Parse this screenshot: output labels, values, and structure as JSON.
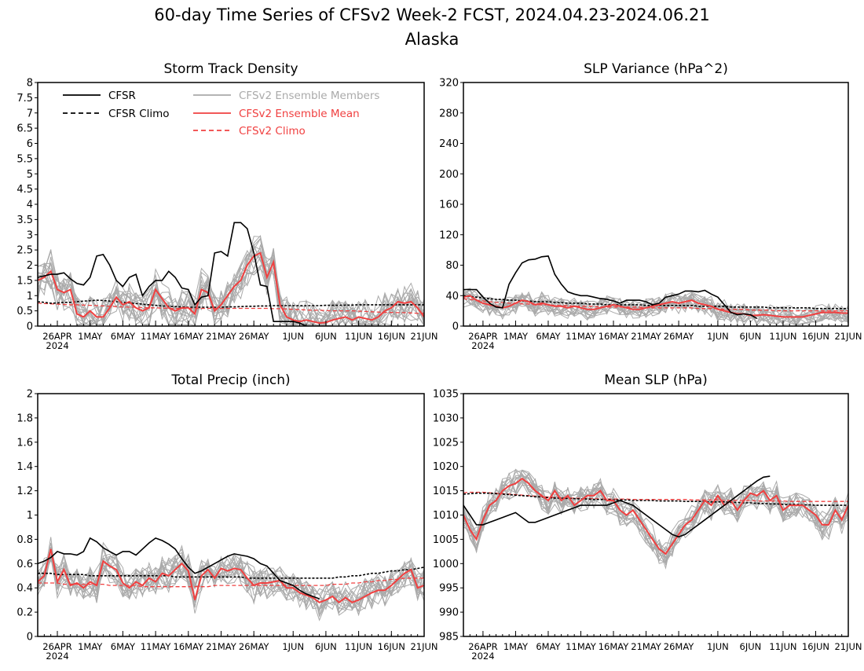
{
  "page": {
    "title_line1": "60-day Time Series of CFSv2 Week-2 FCST, 2024.04.23-2024.06.21",
    "title_line2": "Alaska"
  },
  "colors": {
    "cfsr": "#000000",
    "cfsr_climo": "#000000",
    "members": "#aaaaaa",
    "ens_mean": "#f04040",
    "cfsv2_climo": "#f04040"
  },
  "legend": {
    "cfsr": "CFSR",
    "cfsr_climo": "CFSR Climo",
    "members": "CFSv2 Ensemble Members",
    "ens_mean": "CFSv2 Ensemble Mean",
    "cfsv2_climo": "CFSv2 Climo"
  },
  "x_axis": {
    "ticks": [
      {
        "day": 3,
        "label": "26APR"
      },
      {
        "day": 8,
        "label": "1MAY"
      },
      {
        "day": 13,
        "label": "6MAY"
      },
      {
        "day": 18,
        "label": "11MAY"
      },
      {
        "day": 23,
        "label": "16MAY"
      },
      {
        "day": 28,
        "label": "21MAY"
      },
      {
        "day": 33,
        "label": "26MAY"
      },
      {
        "day": 39,
        "label": "1JUN"
      },
      {
        "day": 44,
        "label": "6JUN"
      },
      {
        "day": 49,
        "label": "11JUN"
      },
      {
        "day": 54,
        "label": "16JUN"
      },
      {
        "day": 59,
        "label": "21JUN"
      }
    ],
    "year_label": "2024",
    "range": [
      0,
      59
    ]
  },
  "chart_data": [
    {
      "type": "line",
      "title": "Storm Track Density",
      "ylim": [
        0,
        8
      ],
      "yticks": [
        "0",
        "0.5",
        "1",
        "1.5",
        "2",
        "2.5",
        "3",
        "3.5",
        "4",
        "4.5",
        "5",
        "5.5",
        "6",
        "6.5",
        "7",
        "7.5",
        "8"
      ],
      "cfsr": [
        1.6,
        1.65,
        1.7,
        1.7,
        1.75,
        1.55,
        1.4,
        1.35,
        1.6,
        2.3,
        2.35,
        2.0,
        1.5,
        1.3,
        1.6,
        1.7,
        1.0,
        1.3,
        1.5,
        1.5,
        1.8,
        1.6,
        1.25,
        1.2,
        0.7,
        0.95,
        1.0,
        2.4,
        2.45,
        2.3,
        3.4,
        3.4,
        3.2,
        2.4,
        1.35,
        1.3,
        0.15,
        0.15,
        0.15,
        0.15,
        0.1,
        0.0
      ],
      "cfsr_climo": [
        0.8,
        0.78,
        0.75,
        0.76,
        0.78,
        0.78,
        0.8,
        0.82,
        0.83,
        0.85,
        0.84,
        0.82,
        0.8,
        0.78,
        0.76,
        0.74,
        0.72,
        0.7,
        0.68,
        0.66,
        0.65,
        0.64,
        0.63,
        0.62,
        0.62,
        0.62,
        0.62,
        0.62,
        0.62,
        0.63,
        0.63,
        0.64,
        0.65,
        0.65,
        0.66,
        0.66,
        0.67,
        0.67,
        0.67,
        0.67,
        0.67,
        0.67,
        0.67,
        0.67,
        0.68,
        0.68,
        0.68,
        0.69,
        0.69,
        0.7,
        0.7,
        0.7,
        0.7,
        0.7,
        0.7,
        0.7,
        0.7,
        0.7,
        0.7,
        0.7
      ],
      "ens_mean": [
        1.5,
        1.6,
        1.8,
        1.2,
        1.1,
        1.2,
        0.4,
        0.3,
        0.5,
        0.3,
        0.3,
        0.6,
        0.95,
        0.7,
        0.8,
        0.6,
        0.5,
        0.6,
        1.2,
        0.9,
        0.6,
        0.5,
        0.6,
        0.6,
        0.4,
        1.2,
        1.1,
        0.5,
        0.7,
        1.0,
        1.3,
        1.5,
        2.0,
        2.3,
        2.4,
        1.6,
        2.1,
        0.7,
        0.3,
        0.2,
        0.15,
        0.2,
        0.15,
        0.1,
        0.12,
        0.2,
        0.25,
        0.3,
        0.2,
        0.3,
        0.25,
        0.2,
        0.3,
        0.5,
        0.6,
        0.8,
        0.75,
        0.8,
        0.6,
        0.3
      ],
      "cfsv2_climo": [
        0.75,
        0.74,
        0.73,
        0.72,
        0.71,
        0.7,
        0.7,
        0.69,
        0.68,
        0.67,
        0.66,
        0.65,
        0.64,
        0.63,
        0.62,
        0.62,
        0.61,
        0.6,
        0.6,
        0.59,
        0.58,
        0.58,
        0.58,
        0.58,
        0.58,
        0.58,
        0.58,
        0.58,
        0.58,
        0.58,
        0.58,
        0.58,
        0.58,
        0.58,
        0.58,
        0.58,
        0.57,
        0.57,
        0.56,
        0.55,
        0.54,
        0.53,
        0.52,
        0.52,
        0.51,
        0.5,
        0.5,
        0.5,
        0.5,
        0.49,
        0.48,
        0.47,
        0.46,
        0.45,
        0.45,
        0.44,
        0.44,
        0.43,
        0.42,
        0.42
      ],
      "member_spread": 0.6,
      "members_count": 16
    },
    {
      "type": "line",
      "title": "SLP Variance (hPa^2)",
      "ylim": [
        0,
        320
      ],
      "yticks": [
        "0",
        "40",
        "80",
        "120",
        "160",
        "200",
        "240",
        "280",
        "320"
      ],
      "cfsr": [
        48,
        48,
        48,
        38,
        30,
        25,
        24,
        55,
        70,
        83,
        87,
        88,
        91,
        92,
        68,
        55,
        45,
        42,
        40,
        40,
        38,
        36,
        35,
        33,
        30,
        34,
        34,
        34,
        32,
        28,
        30,
        38,
        40,
        42,
        46,
        46,
        45,
        47,
        42,
        38,
        28,
        18,
        15,
        16,
        15,
        10
      ],
      "cfsr_climo": [
        40,
        39,
        38,
        37,
        36,
        35,
        35,
        34,
        34,
        33,
        33,
        32,
        32,
        32,
        31,
        31,
        30,
        30,
        30,
        29,
        29,
        29,
        28,
        28,
        28,
        28,
        28,
        28,
        27,
        27,
        27,
        27,
        27,
        27,
        27,
        27,
        26,
        26,
        26,
        26,
        26,
        25,
        25,
        25,
        25,
        25,
        25,
        24,
        24,
        24,
        24,
        24,
        24,
        24,
        23,
        23,
        23,
        23,
        23,
        23
      ],
      "ens_mean": [
        38,
        40,
        34,
        30,
        28,
        26,
        24,
        26,
        30,
        34,
        32,
        28,
        30,
        28,
        26,
        26,
        24,
        26,
        24,
        22,
        22,
        24,
        26,
        28,
        26,
        24,
        22,
        22,
        24,
        26,
        28,
        30,
        32,
        30,
        32,
        34,
        30,
        28,
        26,
        22,
        20,
        18,
        16,
        16,
        14,
        14,
        15,
        14,
        13,
        12,
        12,
        12,
        12,
        14,
        16,
        18,
        18,
        18,
        17,
        17
      ],
      "cfsv2_climo": [
        36,
        35,
        34,
        33,
        32,
        31,
        31,
        30,
        30,
        29,
        29,
        28,
        28,
        28,
        27,
        27,
        27,
        26,
        26,
        26,
        26,
        25,
        25,
        25,
        25,
        25,
        25,
        25,
        24,
        24,
        24,
        24,
        24,
        24,
        24,
        24,
        23,
        23,
        23,
        23,
        22,
        22,
        22,
        22,
        21,
        21,
        21,
        21,
        20,
        20,
        20,
        20,
        20,
        20,
        20,
        20,
        20,
        20,
        20,
        20
      ],
      "member_spread": 12,
      "members_count": 16
    },
    {
      "type": "line",
      "title": "Total Precip (inch)",
      "ylim": [
        0,
        2
      ],
      "yticks": [
        "0",
        "0.2",
        "0.4",
        "0.6",
        "0.8",
        "1",
        "1.2",
        "1.4",
        "1.6",
        "1.8",
        "2"
      ],
      "cfsr": [
        0.6,
        0.62,
        0.65,
        0.7,
        0.68,
        0.68,
        0.67,
        0.7,
        0.81,
        0.78,
        0.73,
        0.7,
        0.67,
        0.7,
        0.7,
        0.67,
        0.72,
        0.77,
        0.81,
        0.79,
        0.76,
        0.72,
        0.64,
        0.57,
        0.52,
        0.54,
        0.57,
        0.6,
        0.63,
        0.66,
        0.68,
        0.67,
        0.66,
        0.64,
        0.6,
        0.58,
        0.52,
        0.46,
        0.44,
        0.42,
        0.38,
        0.35,
        0.33,
        0.31
      ],
      "cfsr_climo": [
        0.52,
        0.52,
        0.52,
        0.51,
        0.51,
        0.51,
        0.51,
        0.51,
        0.5,
        0.5,
        0.5,
        0.5,
        0.5,
        0.5,
        0.5,
        0.5,
        0.5,
        0.5,
        0.5,
        0.5,
        0.5,
        0.49,
        0.49,
        0.49,
        0.49,
        0.49,
        0.49,
        0.49,
        0.49,
        0.49,
        0.49,
        0.49,
        0.48,
        0.48,
        0.48,
        0.48,
        0.48,
        0.48,
        0.48,
        0.48,
        0.48,
        0.48,
        0.48,
        0.48,
        0.48,
        0.48,
        0.49,
        0.49,
        0.5,
        0.5,
        0.51,
        0.52,
        0.52,
        0.53,
        0.54,
        0.54,
        0.55,
        0.55,
        0.56,
        0.57
      ],
      "ens_mean": [
        0.45,
        0.5,
        0.72,
        0.45,
        0.55,
        0.42,
        0.44,
        0.4,
        0.45,
        0.42,
        0.62,
        0.58,
        0.55,
        0.44,
        0.4,
        0.45,
        0.42,
        0.48,
        0.45,
        0.52,
        0.5,
        0.55,
        0.6,
        0.54,
        0.3,
        0.5,
        0.55,
        0.48,
        0.56,
        0.54,
        0.56,
        0.55,
        0.48,
        0.42,
        0.44,
        0.44,
        0.45,
        0.46,
        0.4,
        0.4,
        0.36,
        0.34,
        0.32,
        0.28,
        0.3,
        0.33,
        0.28,
        0.32,
        0.28,
        0.3,
        0.33,
        0.36,
        0.38,
        0.38,
        0.42,
        0.47,
        0.52,
        0.55,
        0.4,
        0.42
      ],
      "cfsv2_climo": [
        0.44,
        0.44,
        0.44,
        0.44,
        0.43,
        0.43,
        0.43,
        0.43,
        0.43,
        0.43,
        0.43,
        0.42,
        0.42,
        0.42,
        0.42,
        0.42,
        0.41,
        0.41,
        0.41,
        0.41,
        0.41,
        0.41,
        0.41,
        0.41,
        0.41,
        0.41,
        0.41,
        0.42,
        0.42,
        0.42,
        0.42,
        0.42,
        0.42,
        0.42,
        0.42,
        0.42,
        0.42,
        0.42,
        0.42,
        0.42,
        0.42,
        0.42,
        0.42,
        0.42,
        0.42,
        0.43,
        0.43,
        0.43,
        0.44,
        0.44,
        0.45,
        0.45,
        0.46,
        0.46,
        0.47,
        0.47,
        0.48,
        0.48,
        0.48,
        0.48
      ],
      "member_spread": 0.12,
      "members_count": 16
    },
    {
      "type": "line",
      "title": "Mean SLP (hPa)",
      "ylim": [
        985,
        1035
      ],
      "yticks": [
        "985",
        "990",
        "995",
        "1000",
        "1005",
        "1010",
        "1015",
        "1020",
        "1025",
        "1030",
        "1035"
      ],
      "cfsr": [
        1012,
        1010,
        1008,
        1008,
        1008.5,
        1009,
        1009.5,
        1010,
        1010.5,
        1009.5,
        1008.5,
        1008.5,
        1009,
        1009.5,
        1010,
        1010.5,
        1011,
        1011.5,
        1012,
        1012,
        1012,
        1012,
        1012,
        1012.5,
        1013,
        1012.5,
        1012,
        1011,
        1010,
        1009,
        1008,
        1007,
        1006,
        1005.5,
        1006,
        1007,
        1008,
        1009,
        1010,
        1011,
        1012,
        1013,
        1014,
        1015,
        1016,
        1017,
        1017.8,
        1018
      ],
      "cfsr_climo": [
        1014.3,
        1014.4,
        1014.5,
        1014.5,
        1014.5,
        1014.4,
        1014.3,
        1014.2,
        1014.1,
        1014,
        1013.9,
        1013.8,
        1013.7,
        1013.6,
        1013.5,
        1013.5,
        1013.4,
        1013.4,
        1013.3,
        1013.3,
        1013.2,
        1013.2,
        1013.2,
        1013.1,
        1013.1,
        1013.1,
        1013,
        1013,
        1013,
        1013,
        1012.9,
        1012.9,
        1012.9,
        1012.9,
        1012.8,
        1012.8,
        1012.8,
        1012.8,
        1012.7,
        1012.7,
        1012.7,
        1012.6,
        1012.6,
        1012.5,
        1012.5,
        1012.4,
        1012.4,
        1012.3,
        1012.3,
        1012.2,
        1012.2,
        1012.2,
        1012.1,
        1012.1,
        1012,
        1012,
        1012,
        1012,
        1012,
        1012
      ],
      "ens_mean": [
        1010,
        1007,
        1005,
        1009,
        1012,
        1013,
        1015,
        1016,
        1016.5,
        1017.5,
        1016.5,
        1015,
        1014,
        1013,
        1015,
        1013,
        1014,
        1012,
        1013,
        1014,
        1014,
        1015,
        1013,
        1013,
        1011,
        1010,
        1011,
        1009,
        1007,
        1005,
        1003,
        1002,
        1004,
        1006,
        1008,
        1009,
        1011,
        1013,
        1012,
        1014,
        1012,
        1013,
        1011,
        1013,
        1014.5,
        1014,
        1015,
        1013,
        1014,
        1011,
        1012,
        1012,
        1012,
        1011,
        1010,
        1008,
        1008,
        1011,
        1009,
        1012
      ],
      "cfsv2_climo": [
        1014.6,
        1014.7,
        1014.7,
        1014.7,
        1014.6,
        1014.5,
        1014.4,
        1014.3,
        1014.2,
        1014.1,
        1014,
        1013.9,
        1013.8,
        1013.7,
        1013.6,
        1013.6,
        1013.5,
        1013.5,
        1013.4,
        1013.4,
        1013.4,
        1013.3,
        1013.3,
        1013.3,
        1013.3,
        1013.3,
        1013.2,
        1013.2,
        1013.2,
        1013.2,
        1013.2,
        1013.2,
        1013.2,
        1013.2,
        1013.2,
        1013.1,
        1013.1,
        1013.1,
        1013.1,
        1013.1,
        1013,
        1013,
        1013,
        1013,
        1013,
        1012.9,
        1012.9,
        1012.9,
        1012.9,
        1012.9,
        1012.8,
        1012.8,
        1012.8,
        1012.8,
        1012.8,
        1012.8,
        1012.8,
        1012.8,
        1012.8,
        1012.8
      ],
      "member_spread": 2.5,
      "members_count": 16
    }
  ]
}
